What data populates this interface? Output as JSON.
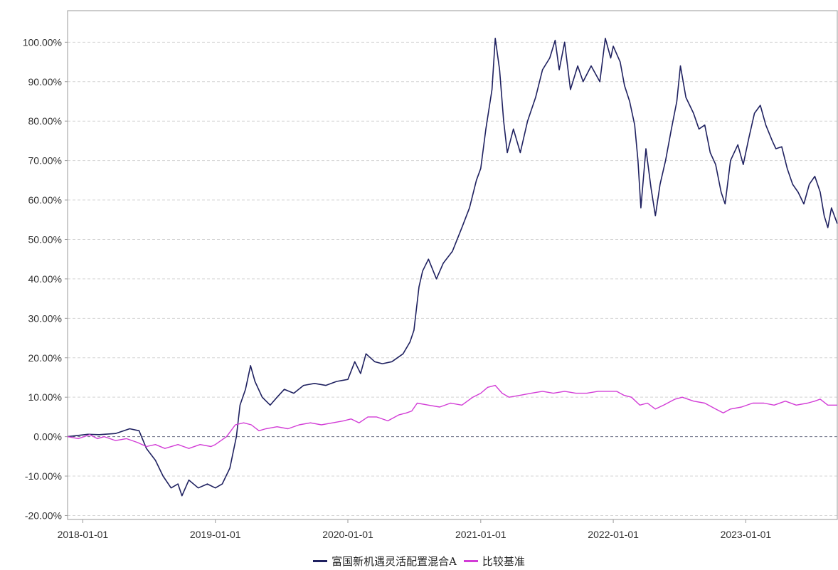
{
  "chart_data": {
    "type": "line",
    "title": "",
    "xlabel": "",
    "ylabel": "",
    "x_ticks": [
      "2018-01-01",
      "2019-01-01",
      "2020-01-01",
      "2021-01-01",
      "2022-01-01",
      "2023-01-01"
    ],
    "x_range": [
      "2017-11-20",
      "2023-09-10"
    ],
    "y_ticks": [
      "100.00%",
      "90.00%",
      "80.00%",
      "70.00%",
      "60.00%",
      "50.00%",
      "40.00%",
      "30.00%",
      "20.00%",
      "10.00%",
      "0.00%",
      "-10.00%",
      "-20.00%"
    ],
    "ylim": [
      -21,
      108
    ],
    "y_unit": "%",
    "grid": true,
    "legend_position": "bottom-center",
    "series": [
      {
        "name": "富国新机遇灵活配置混合A",
        "color": "#1f2160",
        "points": [
          [
            "2017-11-20",
            0.0
          ],
          [
            "2018-01-15",
            0.6
          ],
          [
            "2018-02-15",
            0.5
          ],
          [
            "2018-04-01",
            0.8
          ],
          [
            "2018-05-10",
            2.0
          ],
          [
            "2018-06-05",
            1.5
          ],
          [
            "2018-06-25",
            -3.0
          ],
          [
            "2018-07-20",
            -6.0
          ],
          [
            "2018-08-10",
            -10.0
          ],
          [
            "2018-09-01",
            -13.0
          ],
          [
            "2018-09-20",
            -12.0
          ],
          [
            "2018-10-01",
            -15.0
          ],
          [
            "2018-10-20",
            -11.0
          ],
          [
            "2018-11-15",
            -13.0
          ],
          [
            "2018-12-10",
            -12.0
          ],
          [
            "2019-01-01",
            -13.0
          ],
          [
            "2019-01-20",
            -12.0
          ],
          [
            "2019-02-10",
            -8.0
          ],
          [
            "2019-02-28",
            0.0
          ],
          [
            "2019-03-10",
            8.0
          ],
          [
            "2019-03-25",
            12.0
          ],
          [
            "2019-04-08",
            18.0
          ],
          [
            "2019-04-20",
            14.0
          ],
          [
            "2019-05-10",
            10.0
          ],
          [
            "2019-06-01",
            8.0
          ],
          [
            "2019-06-20",
            10.0
          ],
          [
            "2019-07-10",
            12.0
          ],
          [
            "2019-08-05",
            11.0
          ],
          [
            "2019-09-01",
            13.0
          ],
          [
            "2019-10-01",
            13.5
          ],
          [
            "2019-11-01",
            13.0
          ],
          [
            "2019-12-01",
            14.0
          ],
          [
            "2020-01-01",
            14.5
          ],
          [
            "2020-01-20",
            19.0
          ],
          [
            "2020-02-05",
            16.0
          ],
          [
            "2020-02-20",
            21.0
          ],
          [
            "2020-03-15",
            19.0
          ],
          [
            "2020-04-05",
            18.5
          ],
          [
            "2020-05-01",
            19.0
          ],
          [
            "2020-06-01",
            21.0
          ],
          [
            "2020-06-20",
            24.0
          ],
          [
            "2020-07-01",
            27.0
          ],
          [
            "2020-07-15",
            38.0
          ],
          [
            "2020-07-25",
            42.0
          ],
          [
            "2020-08-10",
            45.0
          ],
          [
            "2020-09-01",
            40.0
          ],
          [
            "2020-09-20",
            44.0
          ],
          [
            "2020-10-15",
            47.0
          ],
          [
            "2020-11-10",
            53.0
          ],
          [
            "2020-12-01",
            58.0
          ],
          [
            "2020-12-20",
            65.0
          ],
          [
            "2021-01-01",
            68.0
          ],
          [
            "2021-01-15",
            78.0
          ],
          [
            "2021-02-01",
            88.0
          ],
          [
            "2021-02-10",
            101.0
          ],
          [
            "2021-02-22",
            93.0
          ],
          [
            "2021-03-05",
            80.0
          ],
          [
            "2021-03-15",
            72.0
          ],
          [
            "2021-04-01",
            78.0
          ],
          [
            "2021-04-20",
            72.0
          ],
          [
            "2021-05-10",
            80.0
          ],
          [
            "2021-06-01",
            86.0
          ],
          [
            "2021-06-20",
            93.0
          ],
          [
            "2021-07-10",
            96.0
          ],
          [
            "2021-07-25",
            100.5
          ],
          [
            "2021-08-05",
            93.0
          ],
          [
            "2021-08-20",
            100.0
          ],
          [
            "2021-09-05",
            88.0
          ],
          [
            "2021-09-25",
            94.0
          ],
          [
            "2021-10-10",
            90.0
          ],
          [
            "2021-11-01",
            94.0
          ],
          [
            "2021-11-25",
            90.0
          ],
          [
            "2021-12-10",
            101.0
          ],
          [
            "2021-12-25",
            96.0
          ],
          [
            "2022-01-01",
            99.0
          ],
          [
            "2022-01-20",
            95.0
          ],
          [
            "2022-02-01",
            89.0
          ],
          [
            "2022-02-15",
            85.0
          ],
          [
            "2022-03-01",
            79.0
          ],
          [
            "2022-03-10",
            70.0
          ],
          [
            "2022-03-18",
            58.0
          ],
          [
            "2022-04-01",
            73.0
          ],
          [
            "2022-04-15",
            63.0
          ],
          [
            "2022-04-27",
            56.0
          ],
          [
            "2022-05-10",
            64.0
          ],
          [
            "2022-05-25",
            70.0
          ],
          [
            "2022-06-10",
            78.0
          ],
          [
            "2022-06-25",
            85.0
          ],
          [
            "2022-07-05",
            94.0
          ],
          [
            "2022-07-20",
            86.0
          ],
          [
            "2022-08-10",
            82.0
          ],
          [
            "2022-08-25",
            78.0
          ],
          [
            "2022-09-10",
            79.0
          ],
          [
            "2022-09-25",
            72.0
          ],
          [
            "2022-10-10",
            69.0
          ],
          [
            "2022-10-25",
            62.0
          ],
          [
            "2022-11-05",
            59.0
          ],
          [
            "2022-11-20",
            70.0
          ],
          [
            "2022-12-10",
            74.0
          ],
          [
            "2022-12-25",
            69.0
          ],
          [
            "2023-01-10",
            76.0
          ],
          [
            "2023-01-25",
            82.0
          ],
          [
            "2023-02-10",
            84.0
          ],
          [
            "2023-02-25",
            79.0
          ],
          [
            "2023-03-15",
            75.0
          ],
          [
            "2023-03-25",
            73.0
          ],
          [
            "2023-04-10",
            73.5
          ],
          [
            "2023-04-25",
            68.0
          ],
          [
            "2023-05-10",
            64.0
          ],
          [
            "2023-05-25",
            62.0
          ],
          [
            "2023-06-10",
            59.0
          ],
          [
            "2023-06-25",
            64.0
          ],
          [
            "2023-07-10",
            66.0
          ],
          [
            "2023-07-25",
            62.0
          ],
          [
            "2023-08-05",
            56.0
          ],
          [
            "2023-08-15",
            53.0
          ],
          [
            "2023-08-25",
            58.0
          ],
          [
            "2023-09-10",
            54.0
          ]
        ]
      },
      {
        "name": "比较基准",
        "color": "#d23cd6",
        "points": [
          [
            "2017-11-20",
            0.0
          ],
          [
            "2017-12-20",
            -0.5
          ],
          [
            "2018-01-20",
            0.5
          ],
          [
            "2018-02-10",
            -0.5
          ],
          [
            "2018-03-01",
            0.0
          ],
          [
            "2018-04-01",
            -1.0
          ],
          [
            "2018-05-01",
            -0.5
          ],
          [
            "2018-06-01",
            -1.5
          ],
          [
            "2018-06-25",
            -2.5
          ],
          [
            "2018-07-20",
            -2.0
          ],
          [
            "2018-08-15",
            -3.0
          ],
          [
            "2018-09-20",
            -2.0
          ],
          [
            "2018-10-20",
            -3.0
          ],
          [
            "2018-11-20",
            -2.0
          ],
          [
            "2018-12-20",
            -2.5
          ],
          [
            "2019-01-01",
            -2.0
          ],
          [
            "2019-02-01",
            0.0
          ],
          [
            "2019-02-25",
            3.0
          ],
          [
            "2019-03-20",
            3.5
          ],
          [
            "2019-04-10",
            3.0
          ],
          [
            "2019-05-01",
            1.5
          ],
          [
            "2019-05-20",
            2.0
          ],
          [
            "2019-06-20",
            2.5
          ],
          [
            "2019-07-20",
            2.0
          ],
          [
            "2019-08-20",
            3.0
          ],
          [
            "2019-09-20",
            3.5
          ],
          [
            "2019-10-20",
            3.0
          ],
          [
            "2019-11-20",
            3.5
          ],
          [
            "2019-12-20",
            4.0
          ],
          [
            "2020-01-10",
            4.5
          ],
          [
            "2020-02-01",
            3.5
          ],
          [
            "2020-02-25",
            5.0
          ],
          [
            "2020-03-20",
            5.0
          ],
          [
            "2020-04-20",
            4.0
          ],
          [
            "2020-05-20",
            5.5
          ],
          [
            "2020-06-10",
            6.0
          ],
          [
            "2020-06-25",
            6.5
          ],
          [
            "2020-07-10",
            8.5
          ],
          [
            "2020-08-10",
            8.0
          ],
          [
            "2020-09-10",
            7.5
          ],
          [
            "2020-10-10",
            8.5
          ],
          [
            "2020-11-10",
            8.0
          ],
          [
            "2020-12-10",
            10.0
          ],
          [
            "2021-01-01",
            11.0
          ],
          [
            "2021-01-20",
            12.5
          ],
          [
            "2021-02-10",
            13.0
          ],
          [
            "2021-03-01",
            11.0
          ],
          [
            "2021-03-20",
            10.0
          ],
          [
            "2021-04-20",
            10.5
          ],
          [
            "2021-05-20",
            11.0
          ],
          [
            "2021-06-20",
            11.5
          ],
          [
            "2021-07-20",
            11.0
          ],
          [
            "2021-08-20",
            11.5
          ],
          [
            "2021-09-20",
            11.0
          ],
          [
            "2021-10-20",
            11.0
          ],
          [
            "2021-11-20",
            11.5
          ],
          [
            "2021-12-20",
            11.5
          ],
          [
            "2022-01-10",
            11.5
          ],
          [
            "2022-01-30",
            10.5
          ],
          [
            "2022-02-20",
            10.0
          ],
          [
            "2022-03-15",
            8.0
          ],
          [
            "2022-04-05",
            8.5
          ],
          [
            "2022-04-27",
            7.0
          ],
          [
            "2022-05-20",
            8.0
          ],
          [
            "2022-06-20",
            9.5
          ],
          [
            "2022-07-10",
            10.0
          ],
          [
            "2022-08-10",
            9.0
          ],
          [
            "2022-09-10",
            8.5
          ],
          [
            "2022-10-10",
            7.0
          ],
          [
            "2022-10-31",
            6.0
          ],
          [
            "2022-11-20",
            7.0
          ],
          [
            "2022-12-20",
            7.5
          ],
          [
            "2023-01-20",
            8.5
          ],
          [
            "2023-02-20",
            8.5
          ],
          [
            "2023-03-20",
            8.0
          ],
          [
            "2023-04-20",
            9.0
          ],
          [
            "2023-05-20",
            8.0
          ],
          [
            "2023-06-20",
            8.5
          ],
          [
            "2023-07-10",
            9.0
          ],
          [
            "2023-07-25",
            9.5
          ],
          [
            "2023-08-15",
            8.0
          ],
          [
            "2023-09-10",
            8.0
          ]
        ]
      }
    ]
  }
}
